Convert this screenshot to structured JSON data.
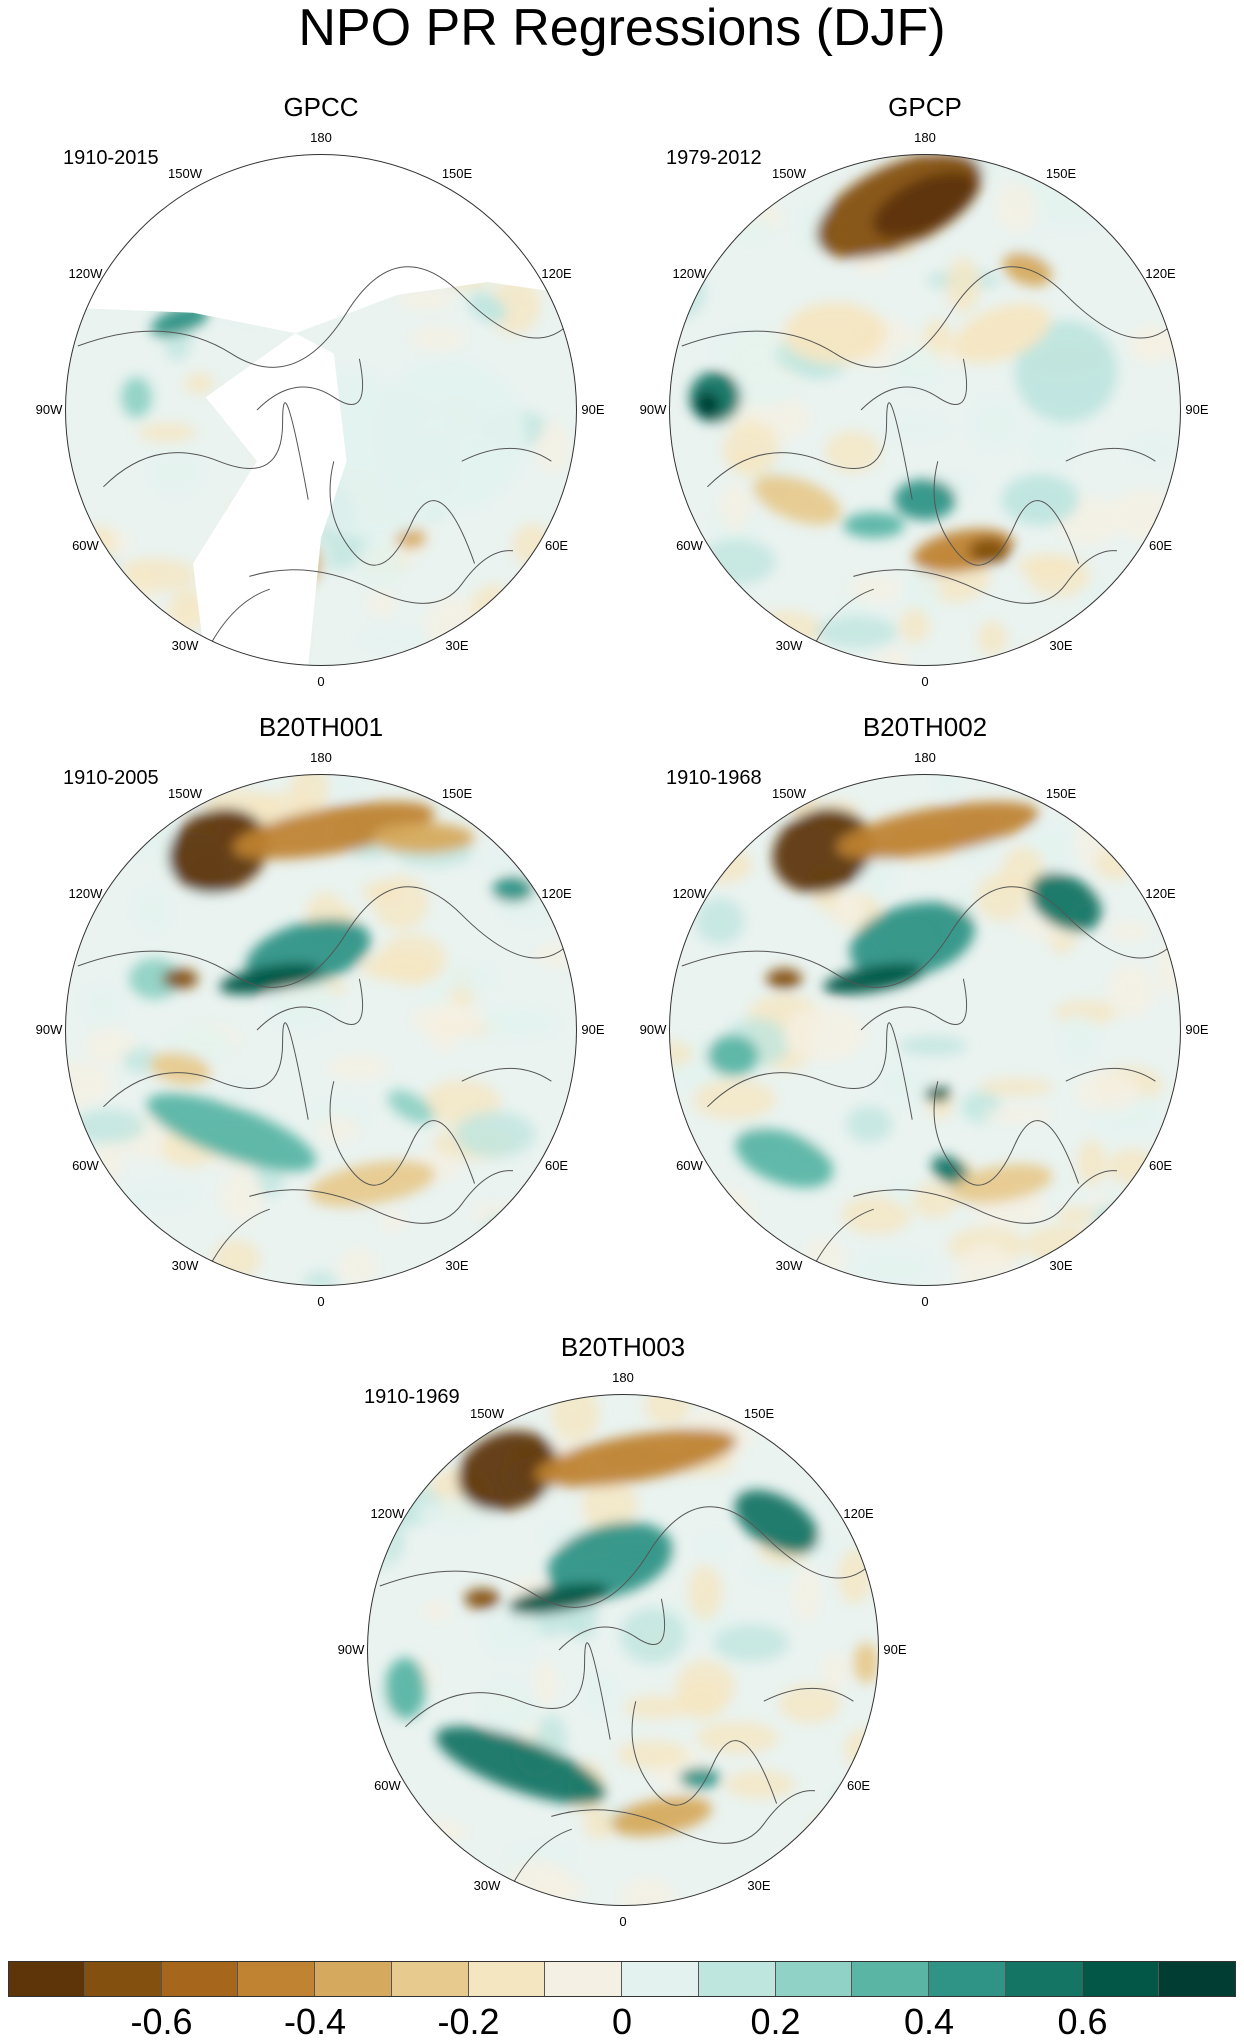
{
  "title": "NPO PR Regressions (DJF)",
  "panels": [
    {
      "id": "gpcc",
      "title": "GPCC",
      "period": "1910-2015",
      "has_missing": true
    },
    {
      "id": "gpcp",
      "title": "GPCP",
      "period": "1979-2012",
      "has_missing": false
    },
    {
      "id": "b20th001",
      "title": "B20TH001",
      "period": "1910-2005",
      "has_missing": false
    },
    {
      "id": "b20th002",
      "title": "B20TH002",
      "period": "1910-1968",
      "has_missing": false
    },
    {
      "id": "b20th003",
      "title": "B20TH003",
      "period": "1910-1969",
      "has_missing": false
    }
  ],
  "lon_labels": {
    "l180": "180",
    "l150e": "150E",
    "l120e": "120E",
    "l90e": "90E",
    "l60e": "60E",
    "l30e": "30E",
    "l0": "0",
    "l30w": "30W",
    "l60w": "60W",
    "l90w": "90W",
    "l120w": "120W",
    "l150w": "150W"
  },
  "colorbar": {
    "colors": [
      "#5e3508",
      "#83500f",
      "#a6671d",
      "#bf8331",
      "#d6aa5e",
      "#e7ca8e",
      "#f5e6c2",
      "#f5f0e4",
      "#e3f2ef",
      "#bfe5df",
      "#90d2c5",
      "#5ab5a5",
      "#2f9486",
      "#147565",
      "#035747",
      "#013d32"
    ],
    "tick_labels": [
      "-0.6",
      "-0.4",
      "-0.2",
      "0",
      "0.2",
      "0.4",
      "0.6"
    ],
    "tick_values": [
      -0.6,
      -0.4,
      -0.2,
      0,
      0.2,
      0.4,
      0.6
    ],
    "levels": [
      -0.7,
      -0.6,
      -0.5,
      -0.4,
      -0.3,
      -0.2,
      -0.1,
      0,
      0.1,
      0.2,
      0.3,
      0.4,
      0.5,
      0.6,
      0.7
    ]
  }
}
